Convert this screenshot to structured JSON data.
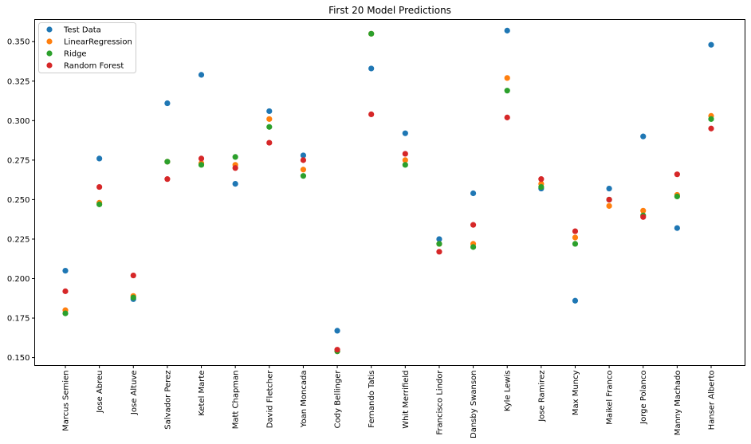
{
  "chart_data": {
    "type": "scatter",
    "title": "First 20 Model Predictions",
    "xlabel": "",
    "ylabel": "",
    "ylim": [
      0.145,
      0.364
    ],
    "yticks": [
      "0.150",
      "0.175",
      "0.200",
      "0.225",
      "0.250",
      "0.275",
      "0.300",
      "0.325",
      "0.350"
    ],
    "grid": false,
    "legend_position": "top-left",
    "categories": [
      "Marcus Semien",
      "Jose Abreu",
      "Jose Altuve",
      "Salvador Perez",
      "Ketel Marte",
      "Matt Chapman",
      "David Fletcher",
      "Yoan Moncada",
      "Cody Bellinger",
      "Fernando Tatis",
      "Whit Merrifield",
      "Francisco Lindor",
      "Dansby Swanson",
      "Kyle Lewis",
      "Jose Ramirez",
      "Max Muncy",
      "Maikel Franco",
      "Jorge Polanco",
      "Manny Machado",
      "Hanser Alberto"
    ],
    "series": [
      {
        "name": "Test Data",
        "color": "#1f77b4",
        "values": [
          0.205,
          0.276,
          0.187,
          0.311,
          0.329,
          0.26,
          0.306,
          0.278,
          0.167,
          0.333,
          0.292,
          0.225,
          0.254,
          0.357,
          0.257,
          0.186,
          0.257,
          0.29,
          0.232,
          0.348
        ]
      },
      {
        "name": "LinearRegression",
        "color": "#ff7f0e",
        "values": [
          0.18,
          0.248,
          0.189,
          0.274,
          0.273,
          0.272,
          0.301,
          0.269,
          0.154,
          0.355,
          0.275,
          0.222,
          0.222,
          0.327,
          0.26,
          0.226,
          0.246,
          0.243,
          0.253,
          0.303
        ]
      },
      {
        "name": "Ridge",
        "color": "#2ca02c",
        "values": [
          0.178,
          0.247,
          0.188,
          0.274,
          0.272,
          0.277,
          0.296,
          0.265,
          0.154,
          0.355,
          0.272,
          0.222,
          0.22,
          0.319,
          0.258,
          0.222,
          0.25,
          0.24,
          0.252,
          0.301
        ]
      },
      {
        "name": "Random Forest",
        "color": "#d62728",
        "values": [
          0.192,
          0.258,
          0.202,
          0.263,
          0.276,
          0.27,
          0.286,
          0.275,
          0.155,
          0.304,
          0.279,
          0.217,
          0.234,
          0.302,
          0.263,
          0.23,
          0.25,
          0.239,
          0.266,
          0.295
        ]
      }
    ]
  }
}
